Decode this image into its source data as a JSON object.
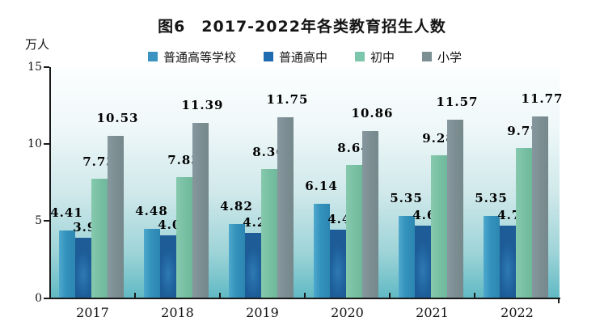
{
  "title": "图6　2017-2022年各类教育招生人数",
  "unit_label": "万人",
  "chart_data": {
    "type": "bar",
    "title": "图6　2017-2022年各类教育招生人数",
    "ylabel": "万人",
    "categories": [
      "2017",
      "2018",
      "2019",
      "2020",
      "2021",
      "2022"
    ],
    "series": [
      {
        "name": "普通高等学校",
        "color": "#3a93c1",
        "values": [
          4.41,
          4.48,
          4.82,
          6.14,
          5.35,
          5.35
        ]
      },
      {
        "name": "普通高中",
        "color": "#1f6cb0",
        "values": [
          3.91,
          4.09,
          4.21,
          4.42,
          4.68,
          4.7
        ]
      },
      {
        "name": "初中",
        "color": "#7cc7ac",
        "values": [
          7.73,
          7.83,
          8.36,
          8.64,
          9.28,
          9.77
        ]
      },
      {
        "name": "小学",
        "color": "#7c8f93",
        "values": [
          10.53,
          11.39,
          11.75,
          10.86,
          11.57,
          11.77
        ]
      }
    ],
    "ylim": [
      0,
      15
    ],
    "yticks": [
      0,
      5,
      10,
      15
    ],
    "legend_position": "top",
    "grid": false,
    "plot_background": {
      "top_color": "#fcfeff",
      "bottom_color": "#60b9c4"
    }
  }
}
